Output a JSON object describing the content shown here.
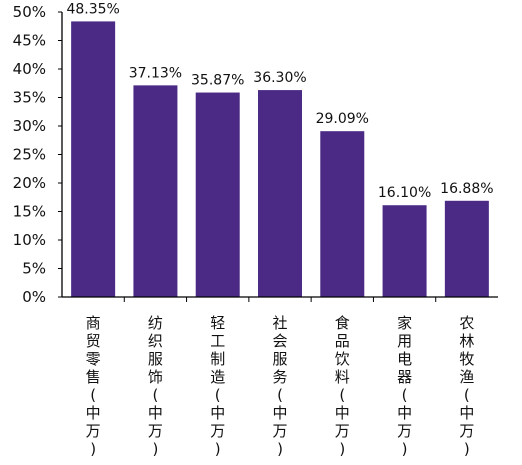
{
  "chart_data": {
    "type": "bar",
    "categories": [
      "商贸零售(中万)",
      "纺织服饰(中万)",
      "轻工制造(中万)",
      "社会服务(中万)",
      "食品饮料(中万)",
      "家用电器(中万)",
      "农林牧渔(中万)"
    ],
    "values": [
      48.35,
      37.13,
      35.87,
      36.3,
      29.09,
      16.1,
      16.88
    ],
    "data_labels": [
      "48.35%",
      "37.13%",
      "35.87%",
      "36.30%",
      "29.09%",
      "16.10%",
      "16.88%"
    ],
    "y_ticks": [
      "0%",
      "5%",
      "10%",
      "15%",
      "20%",
      "25%",
      "30%",
      "35%",
      "40%",
      "45%",
      "50%"
    ],
    "ylim": [
      0,
      50
    ],
    "title": "",
    "xlabel": "",
    "ylabel": "",
    "grid": false,
    "bar_color": "#4b2a86",
    "axis_color": "#000000"
  }
}
